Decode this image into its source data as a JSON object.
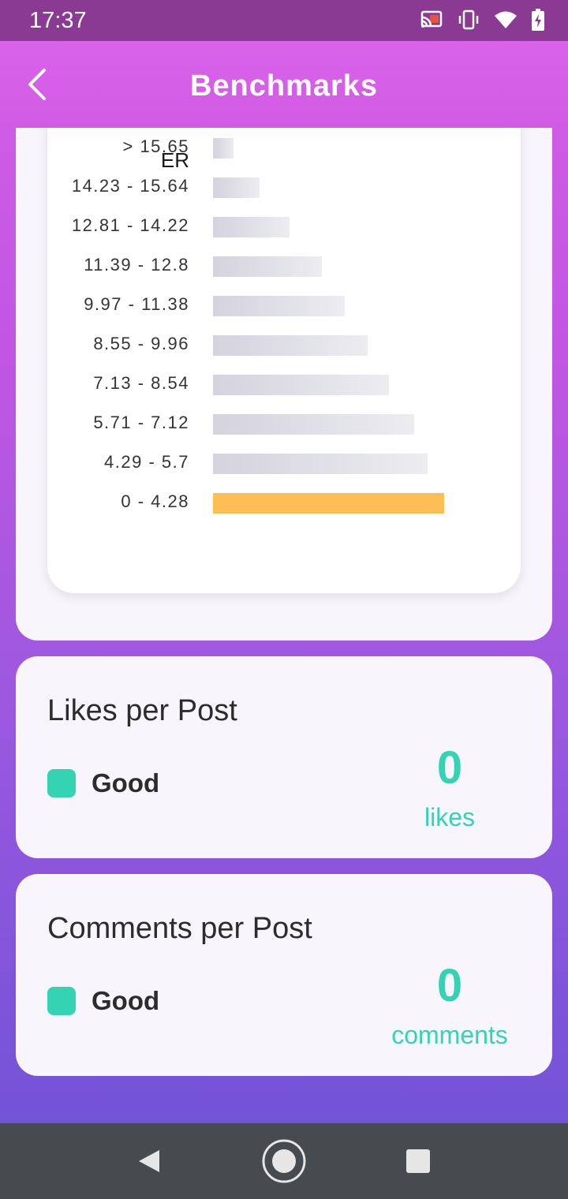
{
  "status_bar": {
    "time": "17:37",
    "icons": [
      "cast-icon",
      "vibrate-icon",
      "wifi-icon",
      "battery-charging-icon"
    ]
  },
  "header": {
    "title": "Benchmarks",
    "back_icon": "chevron-left-icon"
  },
  "er_chart": {
    "axis_title": "ER",
    "rows": [
      {
        "label": "> 15.65",
        "share": 0.09,
        "highlight": false
      },
      {
        "label": "14.23 - 15.64",
        "share": 0.2,
        "highlight": false
      },
      {
        "label": "12.81 - 14.22",
        "share": 0.33,
        "highlight": false
      },
      {
        "label": "11.39 - 12.8",
        "share": 0.47,
        "highlight": false
      },
      {
        "label": "9.97 - 11.38",
        "share": 0.57,
        "highlight": false
      },
      {
        "label": "8.55 - 9.96",
        "share": 0.67,
        "highlight": false
      },
      {
        "label": "7.13 - 8.54",
        "share": 0.76,
        "highlight": false
      },
      {
        "label": "5.71 - 7.12",
        "share": 0.87,
        "highlight": false
      },
      {
        "label": "4.29 - 5.7",
        "share": 0.93,
        "highlight": false
      },
      {
        "label": "0 - 4.28",
        "share": 1.0,
        "highlight": true
      }
    ],
    "colors": {
      "bar": "#d4d3de",
      "highlight": "#fdbf55"
    }
  },
  "likes_card": {
    "title": "Likes per Post",
    "status": "Good",
    "value": "0",
    "unit": "likes"
  },
  "comments_card": {
    "title": "Comments per Post",
    "status": "Good",
    "value": "0",
    "unit": "comments"
  },
  "colors": {
    "accent": "#33d3b4",
    "header": "#d65ee6"
  },
  "nav_bar": {
    "icons": [
      "nav-back-icon",
      "nav-home-icon",
      "nav-recents-icon"
    ]
  }
}
